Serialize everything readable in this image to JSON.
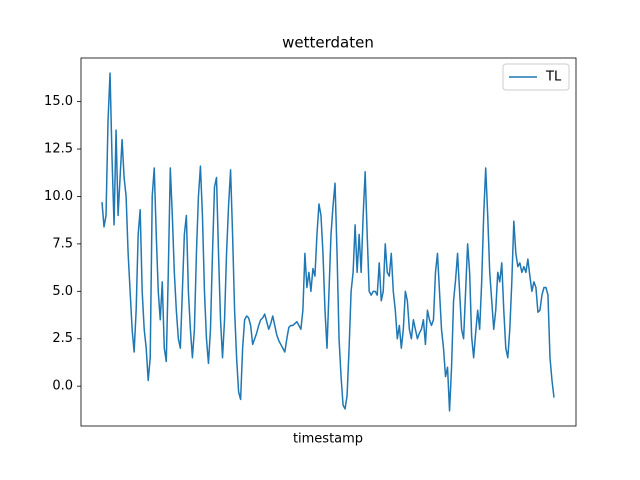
{
  "chart_data": {
    "type": "line",
    "title": "wetterdaten",
    "xlabel": "timestamp",
    "series": [
      {
        "name": "TL",
        "color": "#1f77b4",
        "values": [
          9.7,
          8.4,
          9,
          14,
          16.5,
          12,
          8.5,
          13.5,
          9,
          11,
          13,
          11,
          10,
          7,
          5,
          3,
          1.8,
          4,
          8,
          9.3,
          5,
          3,
          2,
          0.3,
          1.5,
          10,
          11.5,
          8,
          5,
          3.5,
          5.5,
          2,
          1.3,
          6,
          11.5,
          9,
          6,
          4,
          2.5,
          2,
          5,
          8,
          9,
          5,
          3,
          1.5,
          3,
          7,
          10,
          11.6,
          9,
          5,
          2.5,
          1.2,
          3,
          7,
          10.5,
          11,
          7,
          3.5,
          1.5,
          3.5,
          7,
          9.5,
          11.4,
          8,
          4,
          1.5,
          -0.3,
          -0.7,
          2,
          3.5,
          3.7,
          3.6,
          3.2,
          2.2,
          2.5,
          2.8,
          3.2,
          3.5,
          3.6,
          3.8,
          3.4,
          3.0,
          3.3,
          3.7,
          3.2,
          2.7,
          2.4,
          2.2,
          2.0,
          1.8,
          2.5,
          3.1,
          3.2,
          3.2,
          3.3,
          3.4,
          3.2,
          3.0,
          4,
          7,
          5.2,
          6,
          5,
          6.2,
          5.8,
          8,
          9.6,
          9,
          7,
          4,
          2,
          5,
          8,
          9.5,
          10.7,
          7,
          2.5,
          0.5,
          -1,
          -1.2,
          -0.5,
          2,
          5,
          6,
          8.5,
          6,
          8,
          6,
          9,
          11.3,
          8,
          5,
          4.8,
          5,
          5,
          4.8,
          6.5,
          4.5,
          5,
          7.5,
          6,
          5.8,
          7,
          5,
          4,
          2.5,
          3.2,
          2,
          3,
          5,
          4.5,
          3,
          2.5,
          3.5,
          3,
          2.5,
          2.8,
          3,
          3.5,
          2.2,
          4,
          3.5,
          3.2,
          3.5,
          6,
          7,
          5,
          3,
          2,
          0.5,
          1,
          -1.3,
          1,
          4.5,
          5.6,
          7,
          5,
          3,
          2.5,
          5,
          7.5,
          6,
          2.6,
          1.5,
          2.8,
          4,
          3,
          5.5,
          9,
          11.5,
          9,
          6,
          4.5,
          3,
          4,
          6,
          5.5,
          6.5,
          4,
          2,
          1.5,
          3,
          5.5,
          8.7,
          7,
          6.3,
          6.5,
          6,
          6.3,
          6,
          6.7,
          5.8,
          5,
          5.5,
          5.2,
          3.9,
          4,
          4.8,
          5.2,
          5.2,
          4.8,
          1.5,
          0.3,
          -0.6
        ]
      }
    ],
    "ylim": [
      -2.1,
      17.3
    ],
    "yticks": [
      {
        "value": 0,
        "label": "0.0"
      },
      {
        "value": 2.5,
        "label": "2.5"
      },
      {
        "value": 5,
        "label": "5.0"
      },
      {
        "value": 7.5,
        "label": "7.5"
      },
      {
        "value": 10,
        "label": "10.0"
      },
      {
        "value": 12.5,
        "label": "12.5"
      },
      {
        "value": 15,
        "label": "15.0"
      }
    ],
    "legend": "upper right"
  }
}
